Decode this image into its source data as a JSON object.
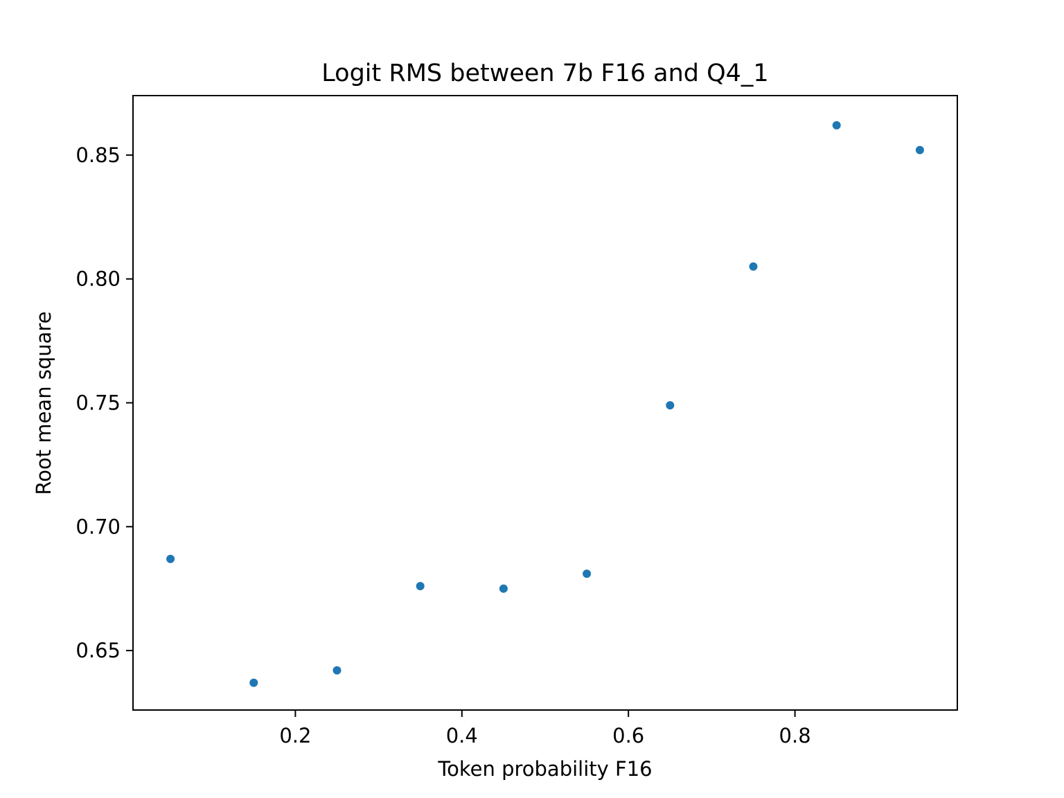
{
  "chart_data": {
    "type": "scatter",
    "title": "Logit RMS between 7b F16 and Q4_1",
    "xlabel": "Token probability F16",
    "ylabel": "Root mean square",
    "xlim": [
      0.005,
      0.995
    ],
    "ylim": [
      0.626,
      0.874
    ],
    "x_ticks": [
      0.2,
      0.4,
      0.6,
      0.8
    ],
    "x_tick_labels": [
      "0.2",
      "0.4",
      "0.6",
      "0.8"
    ],
    "y_ticks": [
      0.65,
      0.7,
      0.75,
      0.8,
      0.85
    ],
    "y_tick_labels": [
      "0.65",
      "0.70",
      "0.75",
      "0.80",
      "0.85"
    ],
    "grid": false,
    "series": [
      {
        "color": "#1f77b4",
        "x": [
          0.05,
          0.15,
          0.25,
          0.35,
          0.45,
          0.55,
          0.65,
          0.75,
          0.85,
          0.95
        ],
        "y": [
          0.687,
          0.637,
          0.642,
          0.676,
          0.675,
          0.681,
          0.749,
          0.805,
          0.862,
          0.852
        ]
      }
    ]
  }
}
